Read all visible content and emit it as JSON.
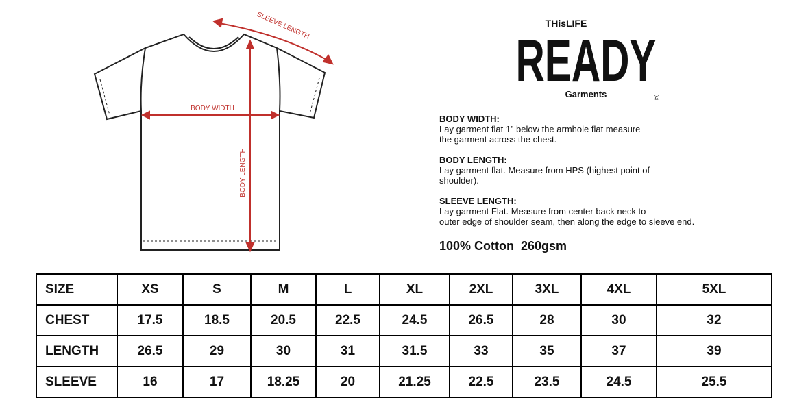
{
  "diagram": {
    "sleeve_label": "SLEEVE LENGTH",
    "width_label": "BODY WIDTH",
    "length_label": "BODY LENGTH"
  },
  "logo": {
    "top": "THisLIFE",
    "main": "READY",
    "bottom": "Garments",
    "mark": "©"
  },
  "instructions": [
    {
      "heading": "BODY WIDTH:",
      "lines": [
        "Lay garment flat 1” below the armhole flat measure",
        "the garment across the chest."
      ]
    },
    {
      "heading": "BODY LENGTH:",
      "lines": [
        "Lay garment flat. Measure from HPS (highest point of",
        "shoulder)."
      ]
    },
    {
      "heading": "SLEEVE LENGTH:",
      "lines": [
        "Lay garment Flat. Measure from center back neck to",
        "outer edge of shoulder seam, then along the edge to sleeve end."
      ]
    }
  ],
  "fabric": "100% Cotton  260gsm",
  "table": {
    "header": [
      "SIZE",
      "XS",
      "S",
      "M",
      "L",
      "XL",
      "2XL",
      "3XL",
      "4XL",
      "5XL"
    ],
    "rows": [
      [
        "CHEST",
        "17.5",
        "18.5",
        "20.5",
        "22.5",
        "24.5",
        "26.5",
        "28",
        "30",
        "32"
      ],
      [
        "LENGTH",
        "26.5",
        "29",
        "30",
        "31",
        "31.5",
        "33",
        "35",
        "37",
        "39"
      ],
      [
        "SLEEVE",
        "16",
        "17",
        "18.25",
        "20",
        "21.25",
        "22.5",
        "23.5",
        "24.5",
        "25.5"
      ]
    ]
  }
}
